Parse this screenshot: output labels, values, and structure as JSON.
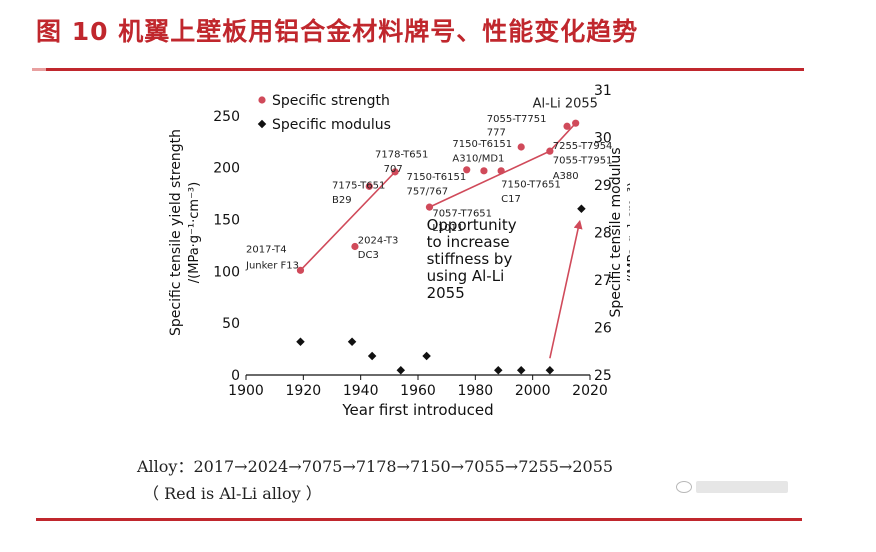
{
  "figure": {
    "title": "图 10  机翼上壁板用铝合金材料牌号、性能变化趋势",
    "caption_line1": "Alloy：2017→2024→7075→7178→7150→7055→7255→2055",
    "caption_line2": "（ Red is Al-Li alloy ）"
  },
  "colors": {
    "accent": "#c0272d",
    "strength": "#d04a5a",
    "modulus": "#111111"
  },
  "chart_data": {
    "type": "scatter",
    "title": "",
    "xlabel": "Year first introduced",
    "ylabel": "Specific tensile yield strength /(MPa·g⁻¹·cm⁻³)",
    "y2label": "Specific tensile modulus /(MPa·g⁻¹·cm⁻³)",
    "xlim": [
      1900,
      2020
    ],
    "ylim": [
      0,
      275
    ],
    "y2lim": [
      25,
      31
    ],
    "xticks": [
      "1900",
      "1920",
      "1940",
      "1960",
      "1980",
      "2000",
      "2020"
    ],
    "yticks": [
      "0",
      "50",
      "100",
      "150",
      "200",
      "250"
    ],
    "y2ticks": [
      "25",
      "26",
      "27",
      "28",
      "29",
      "30",
      "31"
    ],
    "legend_position": "top-left",
    "series": [
      {
        "name": "Specific strength",
        "axis": "left",
        "x": [
          1919,
          1938,
          1943,
          1952,
          1964,
          1977,
          1983,
          1989,
          1996,
          2006,
          2012,
          2015
        ],
        "y": [
          101,
          124,
          182,
          196,
          162,
          198,
          197,
          197,
          220,
          216,
          240,
          243
        ]
      },
      {
        "name": "Specific modulus",
        "axis": "right",
        "x": [
          1919,
          1937,
          1944,
          1954,
          1963,
          1988,
          1996,
          2006,
          2017
        ],
        "y": [
          25.7,
          25.7,
          25.4,
          25.1,
          25.4,
          25.1,
          25.1,
          25.1,
          28.5
        ]
      }
    ],
    "annotations": [
      {
        "text": "2017-T4",
        "x": 1900,
        "y": 118,
        "anchor": "start"
      },
      {
        "text": "Junker F13",
        "x": 1900,
        "y": 103,
        "anchor": "start"
      },
      {
        "text": "2024-T3",
        "x": 1939,
        "y": 127,
        "anchor": "start"
      },
      {
        "text": "DC3",
        "x": 1939,
        "y": 113,
        "anchor": "start"
      },
      {
        "text": "7175-T651",
        "x": 1930,
        "y": 180,
        "anchor": "start"
      },
      {
        "text": "B29",
        "x": 1930,
        "y": 166,
        "anchor": "start"
      },
      {
        "text": "7178-T651",
        "x": 1945,
        "y": 210,
        "anchor": "start"
      },
      {
        "text": "707",
        "x": 1948,
        "y": 196,
        "anchor": "start"
      },
      {
        "text": "7150-T6151",
        "x": 1956,
        "y": 188,
        "anchor": "start"
      },
      {
        "text": "757/767",
        "x": 1956,
        "y": 174,
        "anchor": "start"
      },
      {
        "text": "7150-T6151",
        "x": 1972,
        "y": 220,
        "anchor": "start"
      },
      {
        "text": "A310/MD1",
        "x": 1972,
        "y": 206,
        "anchor": "start"
      },
      {
        "text": "7057-T7651",
        "x": 1965,
        "y": 153,
        "anchor": "start"
      },
      {
        "text": "L1011",
        "x": 1965,
        "y": 139,
        "anchor": "start"
      },
      {
        "text": "7150-T7651",
        "x": 1989,
        "y": 181,
        "anchor": "start"
      },
      {
        "text": "C17",
        "x": 1989,
        "y": 167,
        "anchor": "start"
      },
      {
        "text": "7055-T7751",
        "x": 1984,
        "y": 244,
        "anchor": "start"
      },
      {
        "text": "777",
        "x": 1984,
        "y": 231,
        "anchor": "start"
      },
      {
        "text": "7255-T7954",
        "x": 2007,
        "y": 218,
        "anchor": "start"
      },
      {
        "text": "7055-T7951",
        "x": 2007,
        "y": 204,
        "anchor": "start"
      },
      {
        "text": "A380",
        "x": 2007,
        "y": 189,
        "anchor": "start"
      },
      {
        "text": "Al-Li 2055",
        "x": 2000,
        "y": 258,
        "anchor": "start"
      }
    ],
    "opportunity_text": [
      "Opportunity",
      "to increase",
      "stiffness by",
      "using Al-Li",
      "2055"
    ]
  }
}
